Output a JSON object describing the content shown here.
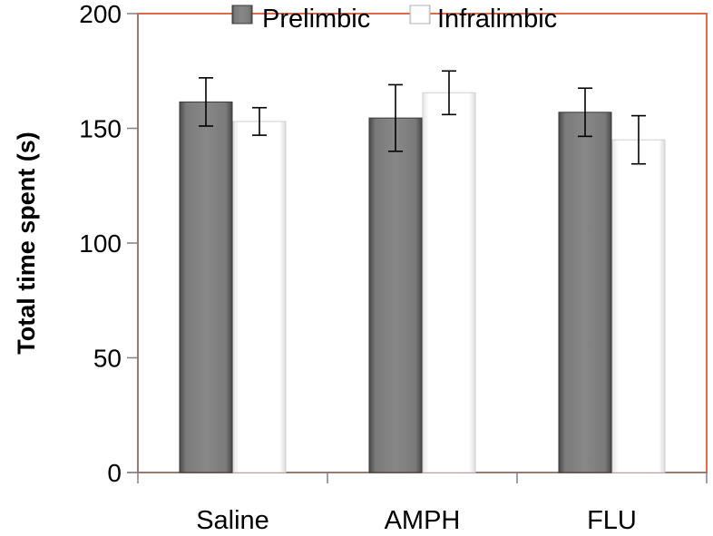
{
  "chart_data": {
    "type": "bar",
    "title": "",
    "xlabel": "",
    "ylabel": "Total time spent (s)",
    "categories": [
      "Saline",
      "AMPH",
      "FLU"
    ],
    "series": [
      {
        "name": "Prelimbic",
        "values": [
          161.5,
          154.5,
          157
        ],
        "error": [
          10.5,
          14.5,
          10.5
        ]
      },
      {
        "name": "Infralimbic",
        "values": [
          153,
          165.5,
          145
        ],
        "error": [
          6,
          9.5,
          10.5
        ]
      }
    ],
    "ylim": [
      0,
      200
    ],
    "yticks": [
      "0",
      "50",
      "100",
      "150",
      "200"
    ],
    "grid": false,
    "legend": "top",
    "colors": {
      "prelimbic": "#7f7f7f",
      "infralimbic": "#ffffff",
      "plot_border": "#e0694a",
      "axis": "#808080"
    }
  }
}
